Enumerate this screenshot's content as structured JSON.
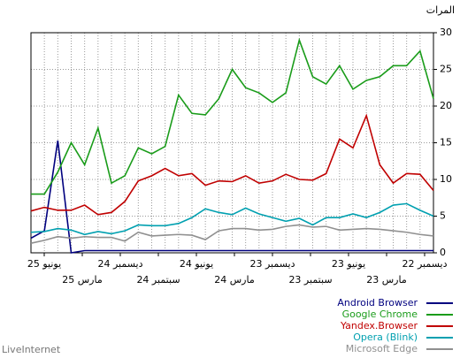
{
  "chart_data": {
    "type": "line",
    "title": "المرات",
    "source": "LiveInternet",
    "xtick_labels": [
      "يونيو 25",
      "مارس 25",
      "ديسمبر 24",
      "سبتمبر 24",
      "يونيو 24",
      "مارس 24",
      "ديسمبر 23",
      "سبتمبر 23",
      "يونيو 23",
      "مارس 23",
      "ديسمبر 22"
    ],
    "ylim": [
      0,
      30
    ],
    "yticks": [
      0,
      5,
      10,
      15,
      20,
      25,
      30
    ],
    "grid": true,
    "legend": "bottom-right",
    "series": [
      {
        "name": "Android Browser",
        "color": "#00007f",
        "values": [
          2,
          3,
          15.3,
          0,
          0.3,
          0.3,
          0.3,
          0.3,
          0.3,
          0.3,
          0.3,
          0.3,
          0.3,
          0.3,
          0.3,
          0.3,
          0.3,
          0.3,
          0.3,
          0.3,
          0.3,
          0.3,
          0.3,
          0.3,
          0.3,
          0.3,
          0.3,
          0.3,
          0.3,
          0.3,
          0.3
        ]
      },
      {
        "name": "Google Chrome",
        "color": "#1a9c1a",
        "values": [
          8,
          8,
          11,
          15,
          12,
          17,
          9.5,
          10.5,
          14.3,
          13.5,
          14.5,
          21.5,
          19,
          18.8,
          21,
          25,
          22.5,
          21.8,
          20.5,
          21.8,
          29,
          24,
          23,
          25.5,
          22.3,
          23.5,
          24,
          25.5,
          25.5,
          27.5,
          21
        ]
      },
      {
        "name": "Yandex.Browser",
        "color": "#c00000",
        "values": [
          5.7,
          6.2,
          5.8,
          5.8,
          6.5,
          5.2,
          5.5,
          7,
          9.8,
          10.5,
          11.5,
          10.5,
          10.8,
          9.2,
          9.8,
          9.7,
          10.5,
          9.5,
          9.8,
          10.7,
          10,
          9.9,
          10.8,
          15.5,
          14.3,
          18.7,
          12,
          9.5,
          10.8,
          10.7,
          8.5
        ]
      },
      {
        "name": "Opera (Blink)",
        "color": "#00a0b0",
        "values": [
          2.8,
          2.9,
          3.3,
          3.1,
          2.5,
          2.9,
          2.6,
          3,
          3.8,
          3.7,
          3.7,
          4,
          4.8,
          6,
          5.5,
          5.2,
          6.1,
          5.3,
          4.8,
          4.3,
          4.7,
          3.8,
          4.8,
          4.8,
          5.3,
          4.8,
          5.5,
          6.5,
          6.7,
          5.8,
          5
        ]
      },
      {
        "name": "Microsoft Edge",
        "color": "#909090",
        "values": [
          1.3,
          1.7,
          2.2,
          2,
          2.2,
          2.1,
          2.1,
          1.6,
          2.8,
          2.3,
          2.4,
          2.5,
          2.4,
          1.8,
          3,
          3.3,
          3.3,
          3.1,
          3.2,
          3.6,
          3.8,
          3.5,
          3.6,
          3.1,
          3.2,
          3.3,
          3.2,
          3,
          2.8,
          2.5,
          2.3
        ]
      }
    ]
  }
}
